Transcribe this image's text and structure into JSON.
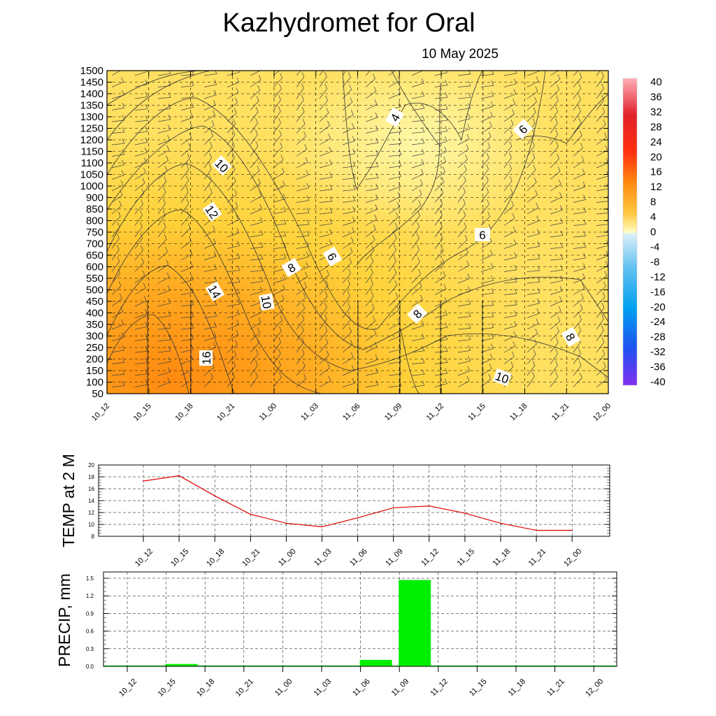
{
  "title": "Kazhydromet  for Oral",
  "subtitle": "10 May 2025",
  "chart_data": [
    {
      "type": "heatmap",
      "y_ticks": [
        "1500",
        "1450",
        "1400",
        "1350",
        "1300",
        "1250",
        "1200",
        "1150",
        "1100",
        "1050",
        "1000",
        "900",
        "850",
        "800",
        "750",
        "700",
        "650",
        "600",
        "550",
        "500",
        "450",
        "400",
        "350",
        "300",
        "250",
        "200",
        "150",
        "100",
        "50"
      ],
      "x_ticks": [
        "10_12",
        "10_15",
        "10_18",
        "10_21",
        "11_00",
        "11_03",
        "11_06",
        "11_09",
        "11_12",
        "11_15",
        "11_18",
        "11_21",
        "12_00"
      ],
      "colorbar_ticks": [
        "40",
        "36",
        "32",
        "28",
        "24",
        "20",
        "16",
        "12",
        "8",
        "4",
        "0",
        "-4",
        "-8",
        "-12",
        "-16",
        "-20",
        "-24",
        "-28",
        "-32",
        "-36",
        "-40"
      ],
      "colorbar_range": [
        -40,
        40
      ],
      "contour_labels": [
        "4",
        "6",
        "6",
        "6",
        "8",
        "8",
        "8",
        "10",
        "10",
        "10",
        "12",
        "14",
        "16"
      ],
      "colors": {
        "warm_low": "#fff59a",
        "warm_mid": "#ffd23a",
        "warm_high": "#ff8a10",
        "cold": "#7a30f0"
      }
    },
    {
      "type": "line",
      "ylabel": "TEMP at 2 M",
      "x": [
        "10_12",
        "10_15",
        "10_18",
        "10_21",
        "11_00",
        "11_03",
        "11_06",
        "11_09",
        "11_12",
        "11_15",
        "11_18",
        "11_21",
        "12_00"
      ],
      "values": [
        17.3,
        18.2,
        14.8,
        11.7,
        10.2,
        9.6,
        11.1,
        12.8,
        13.1,
        11.9,
        10.2,
        9.0,
        9.0
      ],
      "ylim": [
        8,
        20
      ],
      "y_ticks": [
        "20",
        "18",
        "16",
        "14",
        "12",
        "10",
        "8"
      ],
      "line_color": "#e00000"
    },
    {
      "type": "bar",
      "ylabel": "PRECIP, mm",
      "categories": [
        "10_12",
        "10_15",
        "10_18",
        "10_21",
        "11_00",
        "11_03",
        "11_06",
        "11_09",
        "11_12",
        "11_15",
        "11_18",
        "11_21",
        "12_00"
      ],
      "values": [
        0,
        0.04,
        0,
        0,
        0,
        0,
        0.11,
        1.47,
        0,
        0,
        0,
        0,
        0
      ],
      "ylim": [
        0,
        1.5
      ],
      "y_ticks": [
        "1.5",
        "1.2",
        "0.9",
        "0.6",
        "0.3",
        "0.0"
      ],
      "bar_color": "#00ee00"
    }
  ]
}
